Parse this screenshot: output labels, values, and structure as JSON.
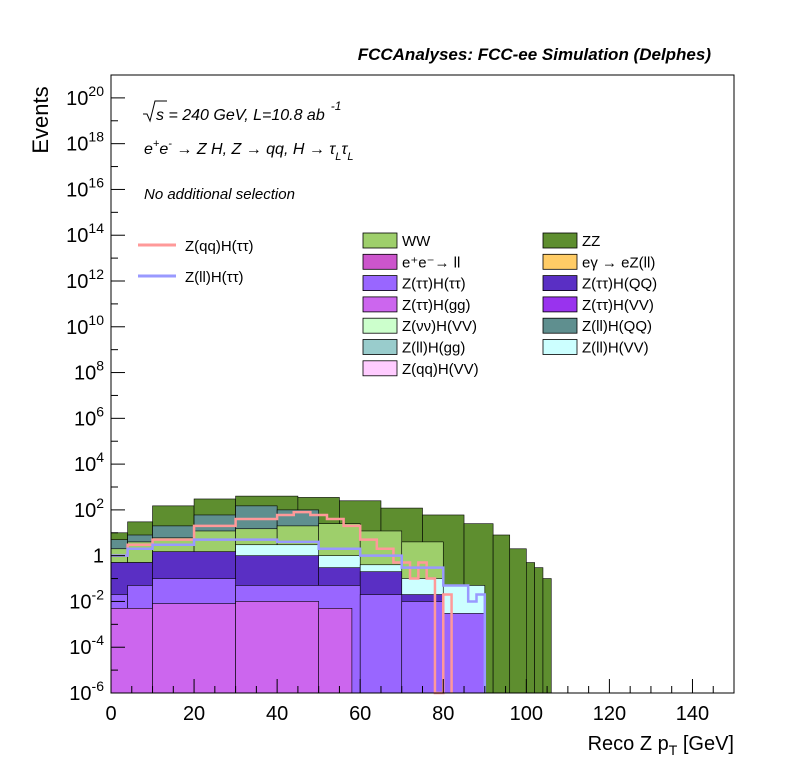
{
  "header": {
    "title": "FCCAnalyses: FCC-ee Simulation (Delphes)"
  },
  "annotations": {
    "line1_sqrt": "s",
    "line1_rest": " = 240 GeV, L=10.8 ab",
    "line1_exp": "-1",
    "line2_a": "e",
    "line2_sup1": "+",
    "line2_b": "e",
    "line2_sup2": "-",
    "line2_c": " → Z H, Z → qq, H → τ",
    "line2_sub1": "L",
    "line2_d": "τ",
    "line2_sub2": "L",
    "line3": "No additional selection"
  },
  "chart_data": {
    "type": "bar",
    "title": "FCCAnalyses: FCC-ee Simulation (Delphes)",
    "xlabel": "Reco Z p",
    "xlabel_sub": "T",
    "xlabel_unit": " [GeV]",
    "ylabel": "Events",
    "xlim": [
      0,
      150
    ],
    "ylim": [
      1e-06,
      1e+21
    ],
    "yscale": "log",
    "bin_width": 2,
    "x_ticks": [
      "0",
      "20",
      "40",
      "60",
      "80",
      "100",
      "120",
      "140"
    ],
    "y_ticks": [
      {
        "base": "10",
        "exp": "20"
      },
      {
        "base": "10",
        "exp": "18"
      },
      {
        "base": "10",
        "exp": "16"
      },
      {
        "base": "10",
        "exp": "14"
      },
      {
        "base": "10",
        "exp": "12"
      },
      {
        "base": "10",
        "exp": "10"
      },
      {
        "base": "10",
        "exp": "8"
      },
      {
        "base": "10",
        "exp": "6"
      },
      {
        "base": "10",
        "exp": "4"
      },
      {
        "base": "10",
        "exp": "2"
      },
      {
        "base": "1",
        "exp": ""
      },
      {
        "base": "10",
        "exp": "-2"
      },
      {
        "base": "10",
        "exp": "-4"
      },
      {
        "base": "10",
        "exp": "-6"
      }
    ],
    "stack_envelopes": [
      {
        "name": "ZZ",
        "color": "#5e8e2f",
        "x_end": 106,
        "values": [
          {
            "x": [
              0,
              4
            ],
            "y": 10
          },
          {
            "x": [
              4,
              10
            ],
            "y": 30
          },
          {
            "x": [
              10,
              20
            ],
            "y": 150
          },
          {
            "x": [
              20,
              30
            ],
            "y": 300
          },
          {
            "x": [
              30,
              45
            ],
            "y": 400
          },
          {
            "x": [
              45,
              55
            ],
            "y": 350
          },
          {
            "x": [
              55,
              65
            ],
            "y": 250
          },
          {
            "x": [
              65,
              75
            ],
            "y": 120
          },
          {
            "x": [
              75,
              85
            ],
            "y": 60
          },
          {
            "x": [
              85,
              92
            ],
            "y": 25
          },
          {
            "x": [
              92,
              96
            ],
            "y": 8
          },
          {
            "x": [
              96,
              100
            ],
            "y": 2
          },
          {
            "x": [
              100,
              102
            ],
            "y": 0.5
          },
          {
            "x": [
              102,
              104
            ],
            "y": 0.3
          },
          {
            "x": [
              104,
              106
            ],
            "y": 0.1
          }
        ]
      },
      {
        "name": "Z(ll)H(QQ)",
        "color": "#5f8f8f",
        "x_end": 60,
        "values": [
          {
            "x": [
              0,
              4
            ],
            "y": 5
          },
          {
            "x": [
              4,
              10
            ],
            "y": 8
          },
          {
            "x": [
              10,
              20
            ],
            "y": 20
          },
          {
            "x": [
              20,
              30
            ],
            "y": 60
          },
          {
            "x": [
              30,
              40
            ],
            "y": 150
          },
          {
            "x": [
              40,
              50
            ],
            "y": 100
          },
          {
            "x": [
              50,
              60
            ],
            "y": 20
          }
        ]
      },
      {
        "name": "WW",
        "color": "#9ecf6b",
        "x_end": 80,
        "values": [
          {
            "x": [
              0,
              4
            ],
            "y": 2
          },
          {
            "x": [
              4,
              10
            ],
            "y": 4
          },
          {
            "x": [
              10,
              20
            ],
            "y": 6
          },
          {
            "x": [
              20,
              30
            ],
            "y": 12
          },
          {
            "x": [
              30,
              40
            ],
            "y": 15
          },
          {
            "x": [
              40,
              50
            ],
            "y": 20
          },
          {
            "x": [
              50,
              60
            ],
            "y": 25
          },
          {
            "x": [
              60,
              70
            ],
            "y": 12
          },
          {
            "x": [
              70,
              80
            ],
            "y": 4
          }
        ]
      },
      {
        "name": "Z(ll)H(VV)",
        "color": "#ccffff",
        "x_end": 90,
        "values": [
          {
            "x": [
              0,
              10
            ],
            "y": 0.5
          },
          {
            "x": [
              10,
              30
            ],
            "y": 1
          },
          {
            "x": [
              30,
              50
            ],
            "y": 3
          },
          {
            "x": [
              50,
              60
            ],
            "y": 1
          },
          {
            "x": [
              60,
              70
            ],
            "y": 0.4
          },
          {
            "x": [
              70,
              80
            ],
            "y": 0.1
          },
          {
            "x": [
              80,
              90
            ],
            "y": 0.05
          }
        ]
      },
      {
        "name": "Z(ττ)H(QQ)",
        "color": "#5a2fc4",
        "x_end": 80,
        "values": [
          {
            "x": [
              0,
              10
            ],
            "y": 0.5
          },
          {
            "x": [
              10,
              30
            ],
            "y": 1.5
          },
          {
            "x": [
              30,
              50
            ],
            "y": 1
          },
          {
            "x": [
              50,
              60
            ],
            "y": 0.3
          },
          {
            "x": [
              60,
              70
            ],
            "y": 0.2
          },
          {
            "x": [
              70,
              80
            ],
            "y": 0.02
          }
        ]
      },
      {
        "name": "Z(ττ)H(ττ)",
        "color": "#9966ff",
        "x_end": 90,
        "values": [
          {
            "x": [
              0,
              4
            ],
            "y": 0.02
          },
          {
            "x": [
              4,
              10
            ],
            "y": 0.05
          },
          {
            "x": [
              10,
              30
            ],
            "y": 0.1
          },
          {
            "x": [
              30,
              60
            ],
            "y": 0.05
          },
          {
            "x": [
              60,
              70
            ],
            "y": 0.02
          },
          {
            "x": [
              70,
              80
            ],
            "y": 0.01
          },
          {
            "x": [
              80,
              90
            ],
            "y": 0.003
          }
        ]
      },
      {
        "name": "Z(ττ)H(gg)",
        "color": "#cc66ee",
        "x_end": 58,
        "values": [
          {
            "x": [
              0,
              10
            ],
            "y": 0.005
          },
          {
            "x": [
              10,
              30
            ],
            "y": 0.008
          },
          {
            "x": [
              30,
              50
            ],
            "y": 0.01
          },
          {
            "x": [
              50,
              58
            ],
            "y": 0.005
          }
        ]
      }
    ],
    "series": [
      {
        "name": "Z(qq)H(ττ)",
        "color": "#ff9999",
        "points": [
          [
            0,
            1
          ],
          [
            4,
            3
          ],
          [
            10,
            5
          ],
          [
            20,
            20
          ],
          [
            30,
            40
          ],
          [
            40,
            60
          ],
          [
            44,
            80
          ],
          [
            48,
            60
          ],
          [
            52,
            40
          ],
          [
            56,
            20
          ],
          [
            60,
            5
          ],
          [
            64,
            2
          ],
          [
            68,
            0.5
          ],
          [
            72,
            0.1
          ],
          [
            74,
            0.5
          ],
          [
            76,
            0.1
          ],
          [
            78,
            1e-06
          ],
          [
            80,
            0.02
          ],
          [
            82,
            1e-06
          ]
        ]
      },
      {
        "name": "Z(ll)H(ττ)",
        "color": "#9999ff",
        "points": [
          [
            0,
            1
          ],
          [
            4,
            2
          ],
          [
            10,
            3
          ],
          [
            20,
            5
          ],
          [
            30,
            5
          ],
          [
            40,
            4
          ],
          [
            50,
            2
          ],
          [
            60,
            1
          ],
          [
            70,
            0.3
          ],
          [
            80,
            0.05
          ],
          [
            86,
            0.01
          ],
          [
            88,
            0.02
          ],
          [
            90,
            1e-06
          ]
        ]
      }
    ],
    "legend": {
      "lines": [
        {
          "label": "Z(qq)H(ττ)",
          "color": "#ff9999"
        },
        {
          "label": "Z(ll)H(ττ)",
          "color": "#9999ff"
        }
      ],
      "col1": [
        {
          "label": "WW",
          "color": "#9ecf6b"
        },
        {
          "label": "e⁺e⁻→ ll",
          "color": "#cc55cc"
        },
        {
          "label": "Z(ττ)H(ττ)",
          "color": "#9966ff"
        },
        {
          "label": "Z(ττ)H(gg)",
          "color": "#cc66ee"
        },
        {
          "label": "Z(νν)H(VV)",
          "color": "#ccffcc"
        },
        {
          "label": "Z(ll)H(gg)",
          "color": "#99cccc"
        },
        {
          "label": "Z(qq)H(VV)",
          "color": "#ffccff"
        }
      ],
      "col2": [
        {
          "label": "ZZ",
          "color": "#5e8e2f"
        },
        {
          "label": "eγ → eZ(ll)",
          "color": "#ffcc66"
        },
        {
          "label": "Z(ττ)H(QQ)",
          "color": "#5a2fc4"
        },
        {
          "label": "Z(ττ)H(VV)",
          "color": "#9933ee"
        },
        {
          "label": "Z(ll)H(QQ)",
          "color": "#5f8f8f"
        },
        {
          "label": "Z(ll)H(VV)",
          "color": "#ccffff"
        }
      ]
    }
  }
}
